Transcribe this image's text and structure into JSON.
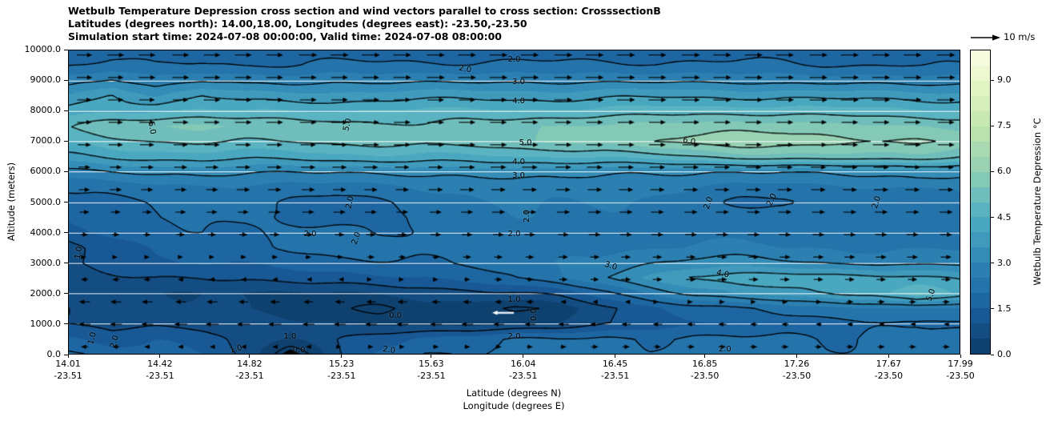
{
  "figure": {
    "background": "#ffffff",
    "title_lines": [
      "Wetbulb Temperature Depression cross section and wind vectors parallel to cross section: CrosssectionB",
      "Latitudes (degrees north): 14.00,18.00, Longitudes (degrees east): -23.50,-23.50",
      "Simulation start time: 2024-07-08 00:00:00, Valid time: 2024-07-08 08:00:00"
    ]
  },
  "axes": {
    "y_label": "Altitude (meters)",
    "x_label_line1": "Latitude (degrees N)",
    "x_label_line2": "Longitude (degrees E)",
    "x_range": [
      14.01,
      17.99
    ],
    "y_range": [
      0,
      10000
    ],
    "y_ticks": [
      "0.0",
      "1000.0",
      "2000.0",
      "3000.0",
      "4000.0",
      "5000.0",
      "6000.0",
      "7000.0",
      "8000.0",
      "9000.0",
      "10000.0"
    ],
    "x_ticks": [
      {
        "lat": "14.01",
        "lon": "-23.51"
      },
      {
        "lat": "14.42",
        "lon": "-23.51"
      },
      {
        "lat": "14.82",
        "lon": "-23.51"
      },
      {
        "lat": "15.23",
        "lon": "-23.51"
      },
      {
        "lat": "15.63",
        "lon": "-23.51"
      },
      {
        "lat": "16.04",
        "lon": "-23.51"
      },
      {
        "lat": "16.45",
        "lon": "-23.51"
      },
      {
        "lat": "16.85",
        "lon": "-23.50"
      },
      {
        "lat": "17.26",
        "lon": "-23.50"
      },
      {
        "lat": "17.67",
        "lon": "-23.50"
      },
      {
        "lat": "17.99",
        "lon": "-23.50"
      }
    ]
  },
  "colorbar": {
    "label": "Wetbulb Temperature Depression °C",
    "ticks": [
      "0.0",
      "1.5",
      "3.0",
      "4.5",
      "6.0",
      "7.5",
      "9.0"
    ],
    "tick_values": [
      0,
      1.5,
      3,
      4.5,
      6,
      7.5,
      9
    ],
    "range": [
      0,
      10
    ],
    "band_step": 0.5,
    "colormap_stops": [
      [
        0,
        "#0d3b66"
      ],
      [
        1.5,
        "#1a5f9e"
      ],
      [
        3,
        "#2e86b5"
      ],
      [
        4.5,
        "#4fadc2"
      ],
      [
        6,
        "#8fceb4"
      ],
      [
        7.5,
        "#c3e6ae"
      ],
      [
        9,
        "#e8f6c8"
      ],
      [
        10,
        "#fbfde8"
      ]
    ]
  },
  "quiver_key": {
    "label": "10 m/s",
    "speed": 10
  },
  "chart_data": {
    "type": "heatmap",
    "rendering": "filled-contour with contour lines and wind quiver",
    "title": "Wetbulb Temperature Depression cross section and wind vectors parallel to cross section: CrosssectionB",
    "xlabel": "Latitude (degrees N)",
    "ylabel": "Altitude (meters)",
    "value_name": "wetbulb_temperature_depression_C",
    "wind_units": "m/s",
    "reference_speed": 10,
    "grid_lats": [
      14.0,
      14.2,
      14.4,
      14.6,
      14.8,
      15.0,
      15.2,
      15.4,
      15.6,
      15.8,
      16.0,
      16.2,
      16.4,
      16.6,
      16.8,
      17.0,
      17.2,
      17.4,
      17.6,
      17.8,
      18.0
    ],
    "grid_alts": [
      0,
      500,
      1000,
      1500,
      2000,
      2500,
      3000,
      3500,
      4000,
      4500,
      5000,
      5500,
      6000,
      6500,
      7000,
      7500,
      8000,
      8500,
      9000,
      9500,
      10000
    ],
    "values": [
      [
        2.2,
        1.7,
        1.6,
        1.5,
        1.0,
        -0.5,
        0.8,
        1.5,
        2.1,
        2.0,
        2.2,
        2.3,
        2.2,
        2.1,
        2.3,
        1.95,
        2.2,
        2.1,
        2.2,
        2.3,
        2.2
      ],
      [
        1.6,
        1.2,
        1.4,
        1.3,
        0.9,
        0.5,
        0.9,
        1.3,
        1.6,
        1.8,
        2.05,
        2.0,
        2.1,
        2.0,
        2.1,
        2.05,
        2.1,
        2.0,
        2.1,
        2.2,
        2.1
      ],
      [
        0.9,
        0.9,
        0.9,
        0.8,
        0.7,
        0.6,
        0.5,
        0.4,
        0.3,
        0.3,
        0.4,
        0.6,
        0.9,
        1.2,
        1.4,
        1.6,
        1.7,
        1.8,
        1.9,
        2.0,
        1.9
      ],
      [
        0.9,
        0.8,
        0.7,
        0.6,
        0.4,
        0.3,
        0.2,
        -0.1,
        0.2,
        0.2,
        -0.12,
        0.3,
        0.8,
        1.3,
        1.7,
        2.0,
        2.2,
        2.3,
        2.4,
        2.6,
        2.5
      ],
      [
        0.7,
        0.7,
        0.6,
        0.5,
        0.4,
        0.4,
        0.5,
        0.6,
        0.7,
        0.8,
        1.0,
        1.2,
        1.8,
        2.5,
        3.2,
        3.6,
        3.8,
        4.0,
        4.2,
        5.1,
        4.4
      ],
      [
        0.8,
        0.9,
        1.0,
        1.0,
        1.1,
        1.2,
        1.3,
        1.4,
        1.5,
        1.7,
        2.0,
        2.4,
        3.0,
        3.6,
        4.1,
        4.3,
        4.4,
        4.3,
        4.2,
        4.1,
        4.0
      ],
      [
        1.0,
        1.2,
        1.4,
        1.5,
        1.6,
        1.7,
        1.8,
        1.9,
        2.0,
        2.1,
        2.2,
        2.4,
        2.7,
        3.0,
        3.2,
        3.2,
        3.1,
        3.0,
        2.9,
        2.8,
        2.8
      ],
      [
        0.9,
        1.2,
        1.5,
        1.7,
        1.9,
        2.1,
        2.2,
        2.2,
        2.2,
        2.2,
        2.2,
        2.3,
        2.4,
        2.5,
        2.6,
        2.6,
        2.5,
        2.5,
        2.4,
        2.4,
        2.4
      ],
      [
        1.3,
        1.6,
        1.8,
        2.0,
        1.9,
        2.1,
        2.2,
        1.9,
        2.1,
        2.2,
        2.4,
        2.3,
        2.2,
        2.1,
        2.3,
        2.3,
        2.2,
        2.4,
        2.3,
        2.4,
        2.3
      ],
      [
        1.5,
        1.8,
        2.0,
        2.1,
        2.0,
        1.9,
        1.8,
        1.9,
        2.1,
        2.3,
        2.5,
        2.5,
        2.4,
        2.3,
        2.3,
        2.4,
        2.3,
        2.3,
        2.4,
        2.5,
        2.4
      ],
      [
        1.7,
        1.9,
        2.1,
        2.2,
        2.1,
        1.9,
        1.8,
        2.0,
        2.2,
        2.4,
        2.6,
        2.6,
        2.5,
        2.4,
        2.2,
        2.0,
        1.9,
        2.05,
        1.9,
        2.1,
        2.2
      ],
      [
        2.0,
        2.2,
        2.4,
        2.5,
        2.4,
        2.3,
        2.3,
        2.4,
        2.5,
        2.6,
        2.7,
        2.7,
        2.6,
        2.6,
        2.5,
        2.4,
        2.3,
        2.4,
        2.5,
        2.6,
        2.6
      ],
      [
        2.8,
        3.0,
        3.1,
        3.2,
        3.1,
        3.0,
        3.0,
        3.1,
        3.2,
        3.2,
        3.2,
        3.2,
        3.1,
        3.1,
        3.1,
        3.0,
        3.0,
        3.1,
        3.2,
        3.3,
        3.2
      ],
      [
        3.9,
        4.1,
        4.2,
        4.3,
        4.2,
        4.2,
        4.3,
        4.4,
        4.4,
        4.4,
        4.5,
        4.5,
        4.6,
        4.8,
        5.0,
        5.2,
        5.3,
        5.4,
        5.4,
        5.3,
        5.0
      ],
      [
        4.6,
        4.8,
        5.0,
        5.1,
        5.0,
        5.0,
        5.1,
        5.2,
        5.2,
        5.3,
        5.4,
        5.5,
        5.7,
        6.0,
        6.2,
        6.3,
        6.3,
        6.2,
        6.1,
        6.0,
        5.8
      ],
      [
        5.0,
        5.45,
        5.5,
        5.6,
        5.5,
        5.4,
        5.3,
        5.05,
        5.1,
        5.3,
        5.4,
        5.5,
        5.6,
        5.7,
        5.8,
        5.8,
        5.8,
        5.7,
        5.6,
        5.5,
        5.4
      ],
      [
        4.2,
        4.4,
        4.5,
        4.6,
        4.5,
        4.5,
        4.5,
        4.6,
        4.6,
        4.6,
        4.6,
        4.6,
        4.7,
        4.7,
        4.8,
        4.8,
        4.8,
        4.7,
        4.7,
        4.6,
        4.6
      ],
      [
        3.4,
        4.1,
        3.5,
        4.05,
        3.7,
        3.7,
        3.7,
        3.8,
        3.8,
        3.8,
        3.8,
        3.8,
        3.9,
        3.9,
        3.9,
        3.9,
        3.9,
        3.8,
        3.8,
        3.8,
        3.7
      ],
      [
        2.7,
        3.1,
        2.7,
        3.0,
        2.8,
        2.8,
        2.9,
        2.9,
        2.9,
        2.9,
        2.9,
        2.9,
        2.9,
        2.9,
        2.9,
        2.9,
        2.8,
        2.8,
        2.8,
        2.8,
        2.8
      ],
      [
        2.0,
        2.2,
        2.0,
        2.1,
        2.0,
        2.0,
        2.1,
        2.1,
        2.1,
        2.1,
        2.1,
        2.1,
        2.1,
        2.1,
        2.1,
        2.1,
        2.1,
        2.0,
        2.0,
        2.0,
        2.0
      ],
      [
        1.6,
        1.7,
        1.6,
        1.7,
        1.7,
        1.7,
        1.7,
        1.7,
        1.7,
        1.7,
        1.7,
        1.7,
        1.7,
        1.7,
        1.7,
        1.7,
        1.7,
        1.6,
        1.6,
        1.6,
        1.6
      ]
    ],
    "contour_levels": [
      0,
      1,
      2,
      3,
      4,
      5,
      6
    ],
    "gridlines_alt": [
      1000,
      2000,
      3000,
      4000,
      5000,
      6000,
      7000,
      8000,
      9000
    ],
    "contour_labels": [
      {
        "text": "2.0",
        "lat": 16.0,
        "alt": 9660,
        "rot": 0
      },
      {
        "text": "2.0",
        "lat": 15.78,
        "alt": 9350,
        "rot": 10
      },
      {
        "text": "3.0",
        "lat": 16.02,
        "alt": 8930,
        "rot": 0
      },
      {
        "text": "4.0",
        "lat": 16.02,
        "alt": 8290,
        "rot": 0
      },
      {
        "text": "5.0",
        "lat": 14.38,
        "alt": 7430,
        "rot": 80
      },
      {
        "text": "5.0",
        "lat": 15.26,
        "alt": 7540,
        "rot": -75
      },
      {
        "text": "5.0",
        "lat": 16.05,
        "alt": 6940,
        "rot": 0
      },
      {
        "text": "6.0",
        "lat": 16.78,
        "alt": 6980,
        "rot": 12
      },
      {
        "text": "4.0",
        "lat": 16.02,
        "alt": 6310,
        "rot": 0
      },
      {
        "text": "3.0",
        "lat": 16.02,
        "alt": 5840,
        "rot": 0
      },
      {
        "text": "2.0",
        "lat": 15.27,
        "alt": 4980,
        "rot": -78
      },
      {
        "text": "2.0",
        "lat": 16.06,
        "alt": 4540,
        "rot": -90
      },
      {
        "text": "2.0",
        "lat": 16.87,
        "alt": 4950,
        "rot": -70
      },
      {
        "text": "2.0",
        "lat": 17.15,
        "alt": 5060,
        "rot": -65
      },
      {
        "text": "2.0",
        "lat": 17.62,
        "alt": 5000,
        "rot": -72
      },
      {
        "text": "2.0",
        "lat": 15.09,
        "alt": 3940,
        "rot": 0
      },
      {
        "text": "2.0",
        "lat": 15.3,
        "alt": 3800,
        "rot": -70
      },
      {
        "text": "2.0",
        "lat": 16.0,
        "alt": 3930,
        "rot": 0
      },
      {
        "text": "1.0",
        "lat": 14.06,
        "alt": 3340,
        "rot": -80
      },
      {
        "text": "3.0",
        "lat": 16.43,
        "alt": 2880,
        "rot": 18
      },
      {
        "text": "4.0",
        "lat": 16.93,
        "alt": 2620,
        "rot": 12
      },
      {
        "text": "5.0",
        "lat": 17.86,
        "alt": 1950,
        "rot": -70
      },
      {
        "text": "1.0",
        "lat": 16.0,
        "alt": 1790,
        "rot": 0
      },
      {
        "text": "0.0",
        "lat": 15.47,
        "alt": 1250,
        "rot": 0
      },
      {
        "text": "0.0",
        "lat": 16.09,
        "alt": 1320,
        "rot": -90
      },
      {
        "text": "2.0",
        "lat": 16.0,
        "alt": 590,
        "rot": 0
      },
      {
        "text": "1.0",
        "lat": 15.0,
        "alt": 590,
        "rot": 0
      },
      {
        "text": "1.0",
        "lat": 14.12,
        "alt": 520,
        "rot": -75
      },
      {
        "text": "2.0",
        "lat": 14.22,
        "alt": 430,
        "rot": -75
      },
      {
        "text": "1.0",
        "lat": 14.76,
        "alt": 170,
        "rot": -15
      },
      {
        "text": "0.0",
        "lat": 15.04,
        "alt": 120,
        "rot": 0
      },
      {
        "text": "2.0",
        "lat": 15.44,
        "alt": 120,
        "rot": 8
      },
      {
        "text": "2.0",
        "lat": 16.94,
        "alt": 160,
        "rot": 0
      }
    ],
    "wind": {
      "lats": [
        14.08,
        14.22,
        14.36,
        14.51,
        14.65,
        14.79,
        14.93,
        15.08,
        15.22,
        15.36,
        15.5,
        15.65,
        15.79,
        15.93,
        16.07,
        16.22,
        16.36,
        16.5,
        16.64,
        16.79,
        16.93,
        17.07,
        17.21,
        17.36,
        17.5,
        17.64,
        17.78,
        17.93
      ],
      "alts": [
        230,
        970,
        1710,
        2450,
        3190,
        3930,
        4670,
        5410,
        6150,
        6890,
        7630,
        8370,
        9110,
        9850
      ],
      "u": [
        [
          -3,
          -3,
          -2.5,
          -2.5,
          -2,
          -2,
          -2,
          -2,
          1.5,
          2,
          2,
          2.5,
          2.5,
          2.5,
          2.5,
          2.5,
          3,
          3,
          3,
          3,
          3,
          3,
          3,
          3,
          3,
          3,
          3,
          3
        ],
        [
          -5,
          -5,
          -5,
          -5.5,
          -5.5,
          -5.5,
          -5.5,
          -5,
          -5,
          -5,
          -5,
          -5,
          -5,
          -4.5,
          -4.5,
          -4.5,
          -4,
          -4,
          -4,
          -3.5,
          -3.5,
          -3,
          -3,
          -2.5,
          -2.5,
          -2,
          -2,
          -2
        ],
        [
          -4.5,
          -4.5,
          -4.5,
          -4.5,
          -4.5,
          -4,
          -4,
          -4,
          -4,
          -4,
          -4,
          -3.5,
          -3.5,
          -3,
          -3,
          -2.5,
          -2,
          -1,
          1,
          1.5,
          2,
          2,
          2.5,
          2.5,
          3,
          3,
          3,
          3
        ],
        [
          -3,
          -3,
          -3,
          -2.5,
          -2.5,
          -2,
          -2,
          -1.5,
          -1,
          1,
          1.5,
          2,
          2.5,
          3,
          3,
          3.5,
          3.5,
          4,
          4,
          4,
          4,
          4,
          4,
          4,
          4,
          4,
          4,
          4
        ],
        [
          1.5,
          1.5,
          2,
          2,
          2,
          2.5,
          2.5,
          2.5,
          3,
          3,
          3,
          3,
          3.5,
          3.5,
          3.5,
          4,
          4,
          4,
          4,
          4,
          4,
          4.5,
          4.5,
          4.5,
          4.5,
          4.5,
          4.5,
          4.5
        ],
        [
          3,
          3,
          3,
          3.5,
          3.5,
          3.5,
          4,
          4,
          4,
          4,
          4,
          4.5,
          4.5,
          4.5,
          4.5,
          4.5,
          5,
          5,
          5,
          5,
          5,
          5,
          5,
          5,
          5,
          5,
          5,
          5
        ],
        [
          4,
          4,
          4,
          4.5,
          4.5,
          4.5,
          5,
          5,
          5,
          5,
          5,
          5,
          5,
          5.5,
          5.5,
          5.5,
          5.5,
          5.5,
          5.5,
          5.5,
          5.5,
          5.5,
          5.5,
          5.5,
          5.5,
          5.5,
          5.5,
          5.5
        ],
        [
          4.5,
          5,
          5,
          5,
          5,
          5.5,
          5.5,
          5.5,
          5.5,
          5.5,
          5.5,
          6,
          6,
          6,
          6,
          6,
          6,
          6,
          6,
          6,
          6,
          6,
          6,
          6,
          6,
          6,
          6,
          6
        ],
        [
          5,
          5,
          5.5,
          5.5,
          5.5,
          6,
          6,
          6,
          6,
          6,
          6,
          6,
          6.5,
          6.5,
          6.5,
          6.5,
          6.5,
          6.5,
          6.5,
          6.5,
          6.5,
          6.5,
          6.5,
          6.5,
          6.5,
          6.5,
          6.5,
          6.5
        ],
        [
          5.5,
          6,
          6,
          6,
          6.5,
          6.5,
          6.5,
          6.5,
          6.5,
          7,
          7,
          7,
          7,
          7,
          7,
          7,
          7,
          7,
          7,
          7,
          7,
          7,
          7,
          7,
          7,
          7,
          7,
          7
        ],
        [
          6,
          6,
          6.5,
          6.5,
          6.5,
          7,
          7,
          7,
          7,
          7,
          7,
          7,
          7,
          7,
          7,
          7,
          7,
          7,
          7,
          7,
          7,
          7,
          7,
          7,
          7,
          7,
          7,
          7
        ],
        [
          6,
          6.5,
          6.5,
          6.5,
          7,
          7,
          7,
          7,
          7,
          7,
          7,
          7,
          7,
          7,
          7,
          7.5,
          7.5,
          7.5,
          7.5,
          7.5,
          7.5,
          7.5,
          7.5,
          7.5,
          7.5,
          7.5,
          7.5,
          7.5
        ],
        [
          6.5,
          6.5,
          7,
          7,
          7,
          7,
          7,
          7,
          7,
          7,
          7.5,
          7.5,
          7.5,
          7.5,
          7.5,
          7.5,
          7.5,
          7.5,
          7.5,
          7.5,
          7.5,
          7.5,
          7.5,
          7.5,
          7.5,
          7.5,
          7.5,
          7.5
        ],
        [
          6.5,
          7,
          7,
          7,
          7,
          7,
          7,
          7.5,
          7.5,
          7.5,
          7.5,
          7.5,
          7.5,
          7.5,
          7.5,
          7.5,
          7.5,
          7.5,
          7.5,
          7.5,
          7.5,
          7.5,
          7.5,
          7.5,
          7.5,
          7.5,
          7.5,
          7.5
        ]
      ],
      "highlight_arrow": {
        "lat": 15.95,
        "alt": 1350,
        "u": -9,
        "color": "#ffffff"
      }
    }
  }
}
